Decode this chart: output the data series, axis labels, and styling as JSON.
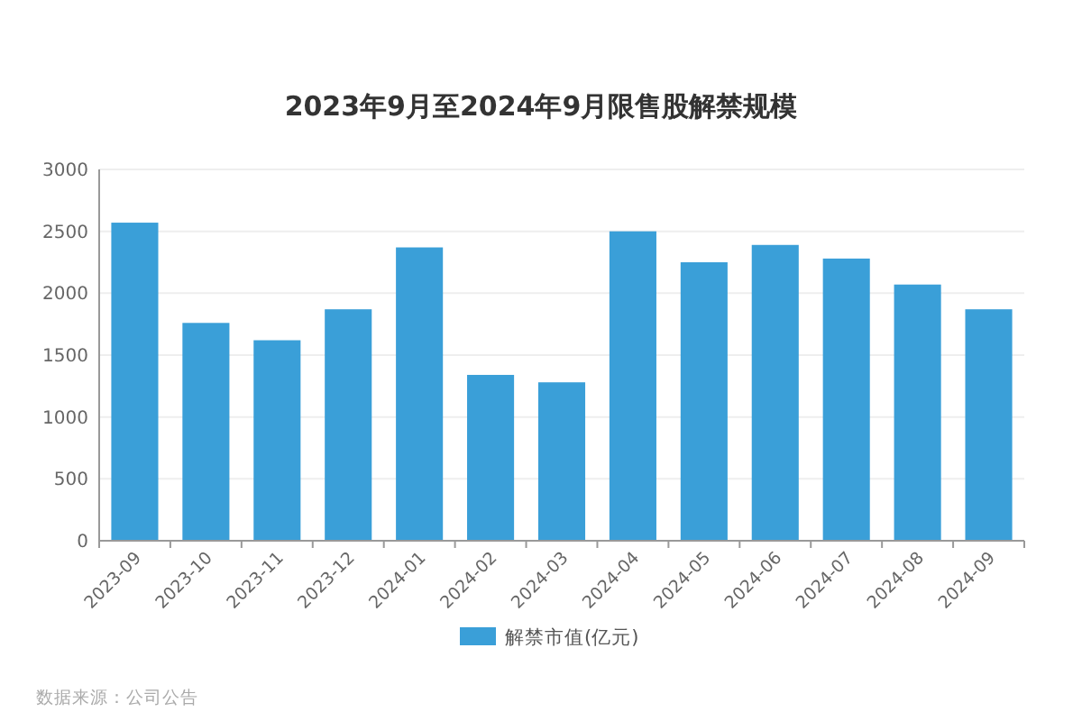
{
  "chart_data": {
    "type": "bar",
    "title": "2023年9月至2024年9月限售股解禁规模",
    "categories": [
      "2023-09",
      "2023-10",
      "2023-11",
      "2023-12",
      "2024-01",
      "2024-02",
      "2024-03",
      "2024-04",
      "2024-05",
      "2024-06",
      "2024-07",
      "2024-08",
      "2024-09"
    ],
    "series": [
      {
        "name": "解禁市值(亿元)",
        "color": "#3a9fd8",
        "values": [
          2570,
          1760,
          1620,
          1870,
          2370,
          1340,
          1280,
          2500,
          2250,
          2390,
          2280,
          2070,
          1870
        ]
      }
    ],
    "ylim": [
      0,
      3000
    ],
    "yticks": [
      0,
      500,
      1000,
      1500,
      2000,
      2500,
      3000
    ],
    "grid": "y",
    "legend": "bottom",
    "annotations": [
      "数据来源：公司公告"
    ]
  }
}
